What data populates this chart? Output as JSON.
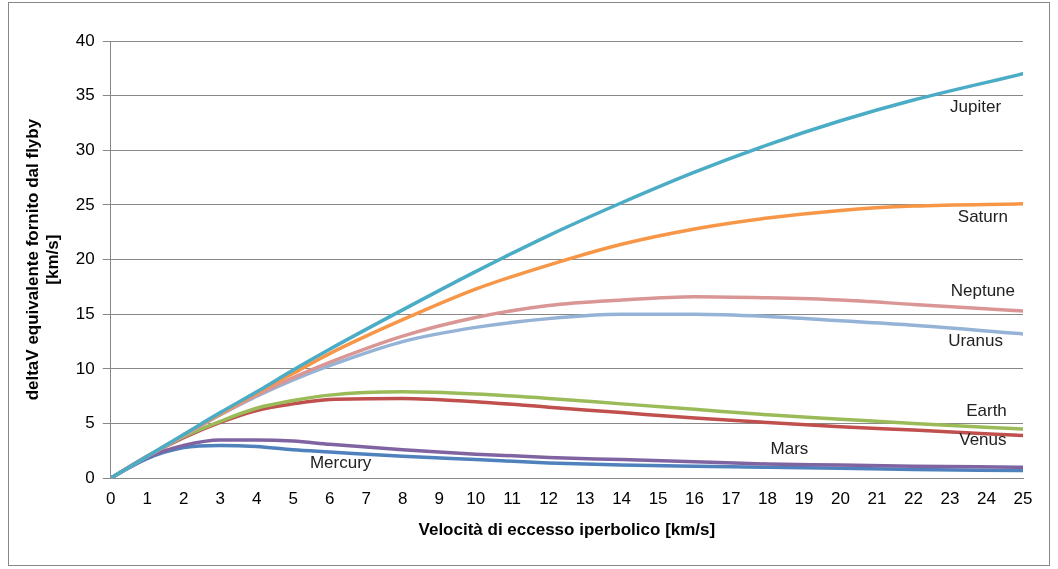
{
  "chart_data": {
    "type": "line",
    "xlabel": "Velocità di eccesso iperbolico [km/s]",
    "ylabel": "deltaV equivalente fornito dal flyby [km/s]",
    "x": [
      0,
      1,
      2,
      3,
      4,
      5,
      6,
      8,
      10,
      12,
      14,
      16,
      18,
      20,
      22,
      25
    ],
    "xlim": [
      0,
      25
    ],
    "xticks": [
      0,
      1,
      2,
      3,
      4,
      5,
      6,
      7,
      8,
      9,
      10,
      11,
      12,
      13,
      14,
      15,
      16,
      17,
      18,
      19,
      20,
      21,
      22,
      23,
      24,
      25
    ],
    "ylim": [
      0,
      40
    ],
    "yticks": [
      0,
      5,
      10,
      15,
      20,
      25,
      30,
      35,
      40
    ],
    "grid": "y",
    "legend": false,
    "marker": "none",
    "line_style": "solid",
    "series": [
      {
        "name": "Jupiter",
        "color": "#4bacc6",
        "values": [
          0,
          2.0,
          4.0,
          6.0,
          7.9,
          9.9,
          11.8,
          15.4,
          18.9,
          22.2,
          25.2,
          28.0,
          30.5,
          32.7,
          34.6,
          37.0
        ]
      },
      {
        "name": "Saturn",
        "color": "#f79646",
        "values": [
          null,
          null,
          4.0,
          5.9,
          7.8,
          9.6,
          11.4,
          14.5,
          17.3,
          19.5,
          21.4,
          22.8,
          23.8,
          24.5,
          24.9,
          25.1
        ]
      },
      {
        "name": "Neptune",
        "color": "#d99694",
        "values": [
          0,
          2.0,
          3.9,
          5.8,
          7.6,
          9.2,
          10.6,
          13.0,
          14.7,
          15.8,
          16.3,
          16.6,
          16.5,
          16.3,
          15.9,
          15.3
        ]
      },
      {
        "name": "Uranus",
        "color": "#95b3d7",
        "values": [
          0,
          2.0,
          3.9,
          5.8,
          7.5,
          9.0,
          10.3,
          12.5,
          13.8,
          14.6,
          15.0,
          15.0,
          14.8,
          14.4,
          14.0,
          13.2
        ]
      },
      {
        "name": "Earth",
        "color": "#9bbb59",
        "values": [
          0,
          2.0,
          3.8,
          5.2,
          6.4,
          7.1,
          7.6,
          7.9,
          7.7,
          7.3,
          6.8,
          6.3,
          5.8,
          5.4,
          5.0,
          4.5
        ]
      },
      {
        "name": "Venus",
        "color": "#c0504d",
        "values": [
          0,
          2.0,
          3.7,
          5.1,
          6.2,
          6.8,
          7.2,
          7.3,
          7.0,
          6.5,
          6.0,
          5.5,
          5.1,
          4.7,
          4.4,
          3.9
        ]
      },
      {
        "name": "Mars",
        "color": "#8064a2",
        "values": [
          0,
          1.9,
          3.0,
          3.5,
          3.5,
          3.4,
          3.1,
          2.6,
          2.2,
          1.9,
          1.7,
          1.5,
          1.3,
          1.2,
          1.1,
          1.0
        ]
      },
      {
        "name": "Mercury",
        "color": "#4f81bd",
        "values": [
          0,
          1.8,
          2.8,
          3.0,
          2.9,
          2.6,
          2.4,
          2.0,
          1.7,
          1.4,
          1.2,
          1.1,
          1.0,
          0.9,
          0.8,
          0.7
        ]
      }
    ]
  }
}
